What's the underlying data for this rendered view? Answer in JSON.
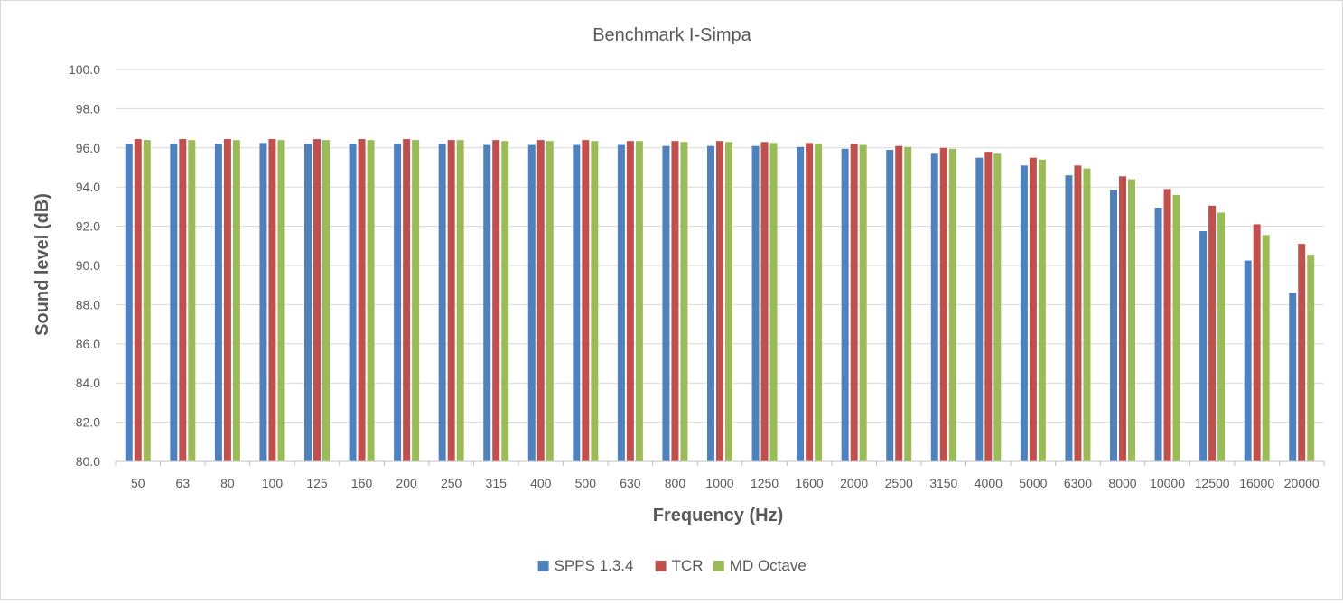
{
  "colors": {
    "SPPS 1.3.4": "#4f81bd",
    "TCR": "#c0504d",
    "MD Octave": "#9bbb59",
    "grid": "#d9d9d9",
    "axis": "#bfbfbf",
    "text": "#595959"
  },
  "chart_data": {
    "type": "bar",
    "title": "Benchmark I-Simpa",
    "xlabel": "Frequency (Hz)",
    "ylabel": "Sound level (dB)",
    "ylim": [
      80,
      100
    ],
    "ytick_step": 2,
    "ytick_labels": [
      "80.0",
      "82.0",
      "84.0",
      "86.0",
      "88.0",
      "90.0",
      "92.0",
      "94.0",
      "96.0",
      "98.0",
      "100.0"
    ],
    "grid": true,
    "legend_position": "bottom",
    "categories": [
      "50",
      "63",
      "80",
      "100",
      "125",
      "160",
      "200",
      "250",
      "315",
      "400",
      "500",
      "630",
      "800",
      "1000",
      "1250",
      "1600",
      "2000",
      "2500",
      "3150",
      "4000",
      "5000",
      "6300",
      "8000",
      "10000",
      "12500",
      "16000",
      "20000"
    ],
    "series": [
      {
        "name": "SPPS 1.3.4",
        "values": [
          96.2,
          96.2,
          96.2,
          96.25,
          96.2,
          96.2,
          96.2,
          96.2,
          96.15,
          96.15,
          96.15,
          96.15,
          96.1,
          96.1,
          96.1,
          96.05,
          95.95,
          95.9,
          95.7,
          95.5,
          95.1,
          94.6,
          93.85,
          92.95,
          91.75,
          90.25,
          88.6
        ]
      },
      {
        "name": "TCR",
        "values": [
          96.45,
          96.45,
          96.45,
          96.45,
          96.45,
          96.45,
          96.45,
          96.4,
          96.4,
          96.4,
          96.4,
          96.35,
          96.35,
          96.35,
          96.3,
          96.25,
          96.2,
          96.1,
          96.0,
          95.8,
          95.5,
          95.1,
          94.55,
          93.9,
          93.05,
          92.1,
          91.1
        ]
      },
      {
        "name": "MD Octave",
        "values": [
          96.4,
          96.4,
          96.4,
          96.4,
          96.4,
          96.4,
          96.4,
          96.4,
          96.35,
          96.35,
          96.35,
          96.35,
          96.3,
          96.3,
          96.25,
          96.2,
          96.15,
          96.05,
          95.95,
          95.7,
          95.4,
          94.95,
          94.4,
          93.6,
          92.7,
          91.55,
          90.55
        ]
      }
    ]
  }
}
